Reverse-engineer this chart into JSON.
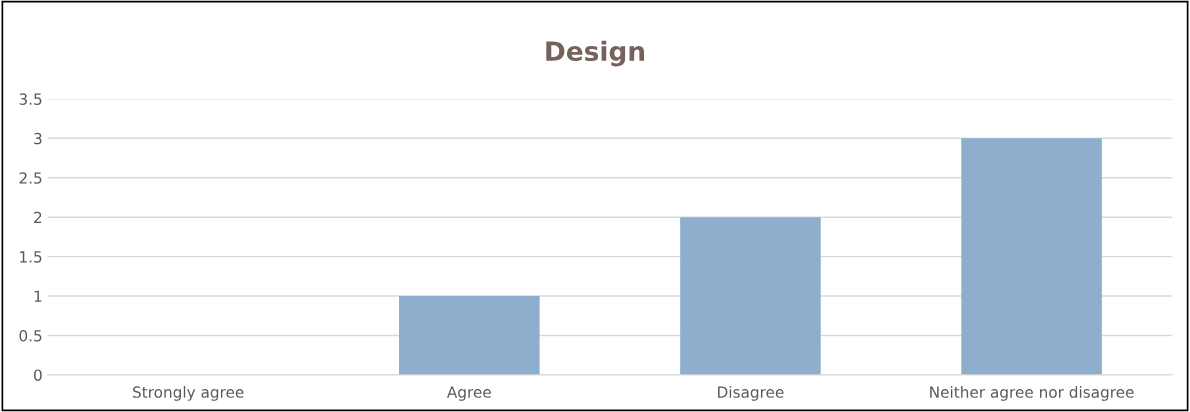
{
  "chart_data": {
    "type": "bar",
    "title": "Design",
    "categories": [
      "Strongly agree",
      "Agree",
      "Disagree",
      "Neither agree nor disagree"
    ],
    "values": [
      0,
      1,
      2,
      3
    ],
    "color": "#8eaecd",
    "ylim": [
      0,
      3.5
    ],
    "yticks": [
      0,
      0.5,
      1,
      1.5,
      2,
      2.5,
      3,
      3.5
    ],
    "grid": "y"
  }
}
